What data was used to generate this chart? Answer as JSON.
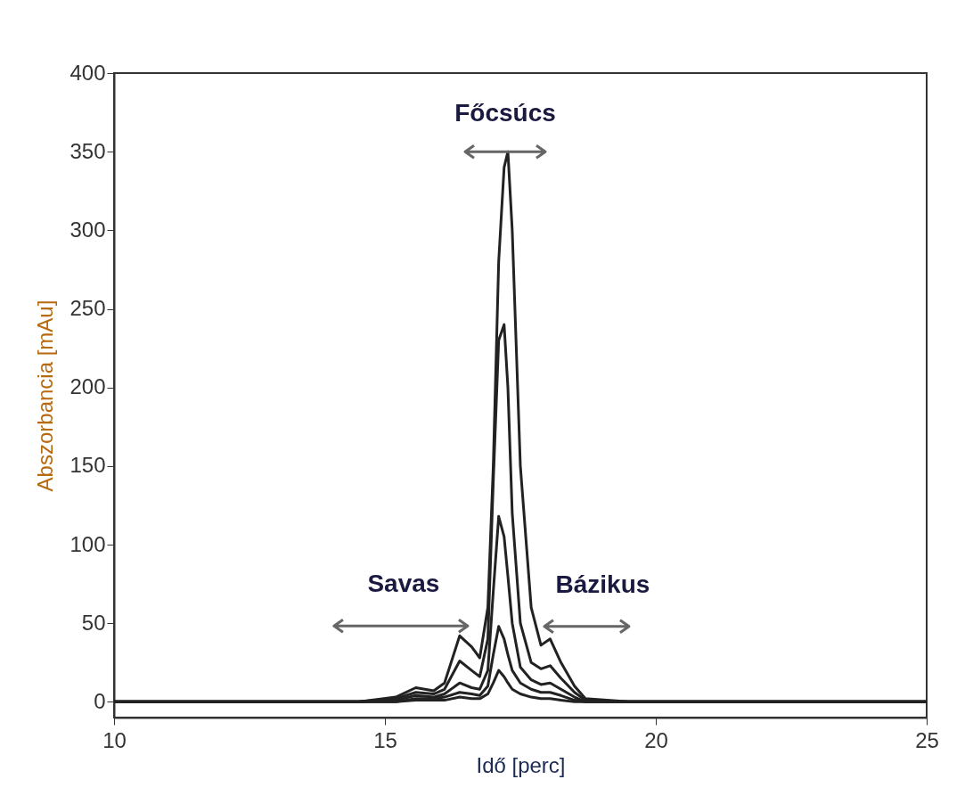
{
  "chart_data": {
    "type": "line",
    "xlabel": "Idő [perc]",
    "ylabel": "Abszorbancia [mAu]",
    "x": [
      10,
      14.5,
      15.2,
      15.57,
      15.9,
      16.1,
      16.38,
      16.6,
      16.75,
      16.9,
      17.0,
      17.1,
      17.2,
      17.27,
      17.35,
      17.5,
      17.7,
      17.88,
      18.05,
      18.25,
      18.5,
      18.7,
      19.5,
      25
    ],
    "series": [
      {
        "color": "#222222",
        "values": [
          0,
          0,
          3,
          9,
          7,
          12,
          42,
          35,
          28,
          60,
          150,
          280,
          340,
          350,
          300,
          150,
          60,
          36,
          40,
          25,
          10,
          2,
          0,
          0
        ]
      },
      {
        "color": "#222222",
        "values": [
          0,
          0,
          2,
          6,
          5,
          8,
          26,
          20,
          16,
          40,
          140,
          230,
          240,
          200,
          120,
          50,
          25,
          21,
          23,
          15,
          6,
          1,
          0,
          0
        ]
      },
      {
        "color": "#222222",
        "values": [
          0,
          0,
          1,
          4,
          3,
          5,
          12,
          9,
          8,
          20,
          70,
          118,
          105,
          80,
          50,
          22,
          14,
          11,
          12,
          8,
          3,
          0,
          0,
          0
        ]
      },
      {
        "color": "#222222",
        "values": [
          0,
          0,
          0,
          2,
          2,
          3,
          6,
          5,
          4,
          10,
          30,
          48,
          40,
          30,
          20,
          12,
          8,
          6,
          6,
          4,
          1,
          0,
          0,
          0
        ]
      },
      {
        "color": "#222222",
        "values": [
          0,
          0,
          0,
          1,
          1,
          1,
          3,
          2,
          2,
          5,
          12,
          20,
          16,
          12,
          8,
          5,
          3,
          2,
          2,
          1,
          0,
          0,
          0,
          0
        ]
      }
    ],
    "xlim": [
      10,
      25
    ],
    "ylim": [
      -10,
      400
    ],
    "xticks": [
      10,
      15,
      20,
      25
    ],
    "yticks": [
      0,
      50,
      100,
      150,
      200,
      250,
      300,
      350,
      400
    ],
    "annotations": [
      {
        "text": "Főcsúcs",
        "x": 17.27,
        "y": 350
      },
      {
        "text": "Savas",
        "x": 16.38,
        "y": 42
      },
      {
        "text": "Bázikus",
        "x": 18.05,
        "y": 40
      }
    ]
  }
}
